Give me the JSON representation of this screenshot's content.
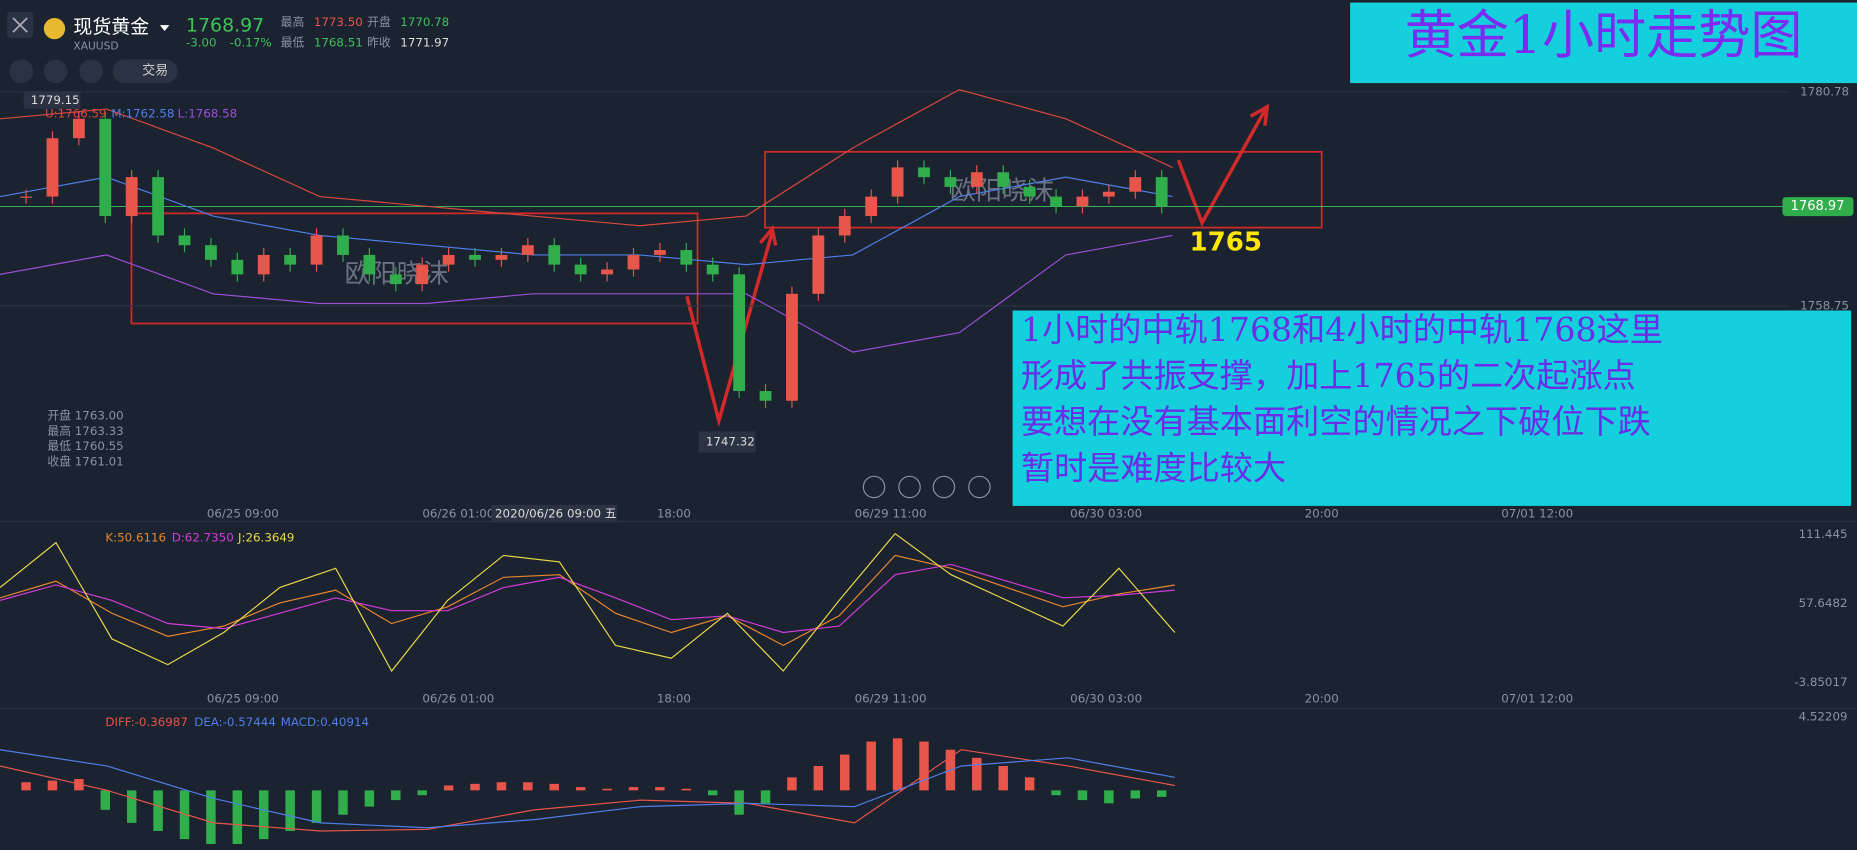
{
  "header": {
    "symbol": "现货黄金",
    "code": "XAUUSD",
    "price": "1768.97",
    "change": "-3.00",
    "change_pct": "-0.17%",
    "high_label": "最高",
    "high": "1773.50",
    "open_label": "开盘",
    "open": "1770.78",
    "low_label": "最低",
    "low": "1768.51",
    "prev_label": "昨收",
    "prev": "1771.97",
    "trade": "交易"
  },
  "price_chart": {
    "ylim": [
      1736.6,
      1790.2
    ],
    "yticks": [
      1780.78,
      1758.75
    ],
    "current": 1768.97,
    "max_label": 1779.15,
    "min_label": 1747.32,
    "boll_labels": [
      "U:1766.59",
      "M:1762.58",
      "L:1768.58"
    ],
    "closes": [
      1770,
      1776,
      1778,
      1768,
      1772,
      1766,
      1765,
      1763.5,
      1762,
      1764,
      1763,
      1766,
      1764,
      1762,
      1761,
      1763,
      1764,
      1763.5,
      1764,
      1765,
      1763,
      1762,
      1762.5,
      1764,
      1764.5,
      1763,
      1762,
      1750,
      1749,
      1760,
      1766,
      1768,
      1770,
      1773,
      1772,
      1771,
      1772.5,
      1771,
      1770,
      1769,
      1770,
      1770.5,
      1772,
      1769
    ],
    "boll_upper": [
      1778,
      1779,
      1775,
      1770,
      1769,
      1768,
      1767,
      1768,
      1775,
      1781,
      1778,
      1773
    ],
    "boll_mid": [
      1770,
      1772,
      1768,
      1766,
      1765,
      1764,
      1764,
      1763,
      1764,
      1770,
      1772,
      1770
    ],
    "boll_lower": [
      1762,
      1764,
      1760,
      1759,
      1759,
      1760,
      1760,
      1760,
      1754,
      1756,
      1764,
      1766
    ],
    "ohlc_box": [
      "开盘 1763.00",
      "最高 1763.33",
      "最低 1760.55",
      "收盘 1761.01"
    ],
    "x_labels": [
      "06/25 09:00",
      "06/26 01:00",
      "18:00",
      "06/29 11:00",
      "06/30 03:00",
      "20:00",
      "07/01 12:00"
    ],
    "crosshair_label": "2020/06/26 09:00 五"
  },
  "kdj": {
    "ylim": [
      -23.2,
      121.6
    ],
    "yticks": [
      111.445,
      57.6482,
      -3.85017
    ],
    "labels": [
      "K:50.6116",
      "D:62.7350",
      "J:26.3649"
    ],
    "k": [
      62,
      75,
      50,
      32,
      40,
      58,
      68,
      42,
      55,
      78,
      80,
      50,
      35,
      48,
      25,
      48,
      95,
      85,
      70,
      55,
      65,
      72
    ],
    "d": [
      60,
      72,
      60,
      42,
      38,
      50,
      62,
      52,
      52,
      70,
      78,
      62,
      45,
      48,
      35,
      40,
      80,
      88,
      75,
      62,
      64,
      68
    ],
    "j": [
      70,
      105,
      30,
      10,
      35,
      70,
      85,
      5,
      60,
      95,
      90,
      25,
      15,
      50,
      5,
      60,
      112,
      80,
      60,
      40,
      85,
      35
    ]
  },
  "macd": {
    "ylim": [
      -3.41,
      5.04
    ],
    "yticks": [
      4.52209
    ],
    "labels": [
      "DIFF:-0.36987",
      "DEA:-0.57444",
      "MACD:0.40914"
    ],
    "hist": [
      0.5,
      0.6,
      0.7,
      -1.2,
      -2,
      -2.5,
      -3,
      -3.3,
      -3.3,
      -3,
      -2.5,
      -2,
      -1.5,
      -1,
      -0.6,
      -0.3,
      0.3,
      0.4,
      0.5,
      0.5,
      0.4,
      0.2,
      0.1,
      0.2,
      0.2,
      0.1,
      -0.3,
      -1.5,
      -0.8,
      0.8,
      1.5,
      2.2,
      3,
      3.2,
      3,
      2.5,
      2,
      1.5,
      0.8,
      -0.3,
      -0.6,
      -0.8,
      -0.5,
      -0.4
    ],
    "diff": [
      1.5,
      0,
      -2,
      -2.5,
      -2.4,
      -1.2,
      -0.6,
      -0.8,
      -2,
      2.5,
      1.5,
      0.3
    ],
    "dea": [
      2.5,
      1.5,
      -0.5,
      -2,
      -2.3,
      -1.8,
      -1,
      -0.8,
      -1,
      1.5,
      2,
      0.8
    ]
  },
  "annotations": {
    "title": "黄金1小时走势图",
    "target": "1765",
    "watermark": "欧阳晓沫",
    "note": [
      "1小时的中轨1768和4小时的中轨1768这里",
      "形成了共振支撑，加上1765的二次起涨点",
      "要想在没有基本面利空的情况之下破位下跌",
      "暂时是难度比较大"
    ]
  }
}
